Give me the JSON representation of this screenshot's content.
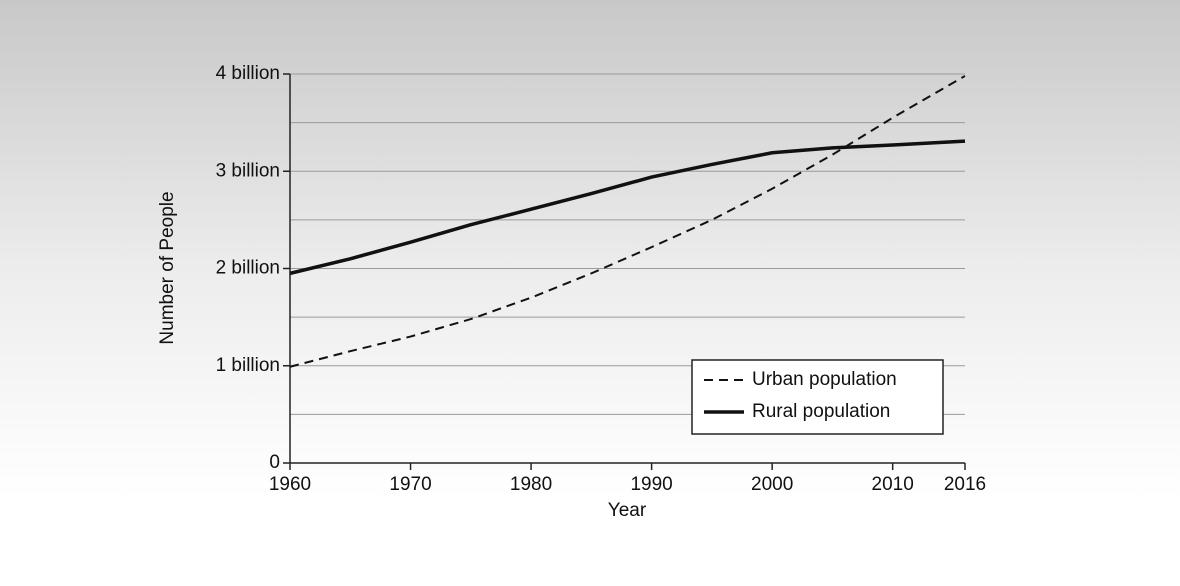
{
  "chart_data": {
    "type": "line",
    "x_label": "Year",
    "y_label": "Number of People",
    "x": [
      1960,
      1965,
      1970,
      1975,
      1980,
      1985,
      1990,
      1995,
      2000,
      2005,
      2010,
      2016
    ],
    "series": [
      {
        "name": "Urban population",
        "color": "#111111",
        "style": "dashed",
        "values": [
          990000000,
          1150000000,
          1300000000,
          1480000000,
          1700000000,
          1950000000,
          2220000000,
          2500000000,
          2820000000,
          3170000000,
          3550000000,
          3980000000
        ]
      },
      {
        "name": "Rural population",
        "color": "#111111",
        "style": "solid",
        "values": [
          1950000000,
          2100000000,
          2270000000,
          2450000000,
          2610000000,
          2770000000,
          2940000000,
          3070000000,
          3190000000,
          3240000000,
          3270000000,
          3310000000
        ]
      }
    ],
    "xlim": [
      1960,
      2016
    ],
    "xticks": [
      1960,
      1970,
      1980,
      1990,
      2000,
      2010,
      2016
    ],
    "ylim": [
      0,
      4000000000
    ],
    "yticks": [
      0,
      {
        "value": 1000000000,
        "label": "1 billion"
      },
      {
        "value": 2000000000,
        "label": "2 billion"
      },
      {
        "value": 3000000000,
        "label": "3 billion"
      },
      {
        "value": 4000000000,
        "label": "4 billion"
      }
    ],
    "minor_yticks": [
      500000000,
      1500000000,
      2500000000,
      3500000000
    ],
    "grid": true,
    "legend": "lower right"
  }
}
